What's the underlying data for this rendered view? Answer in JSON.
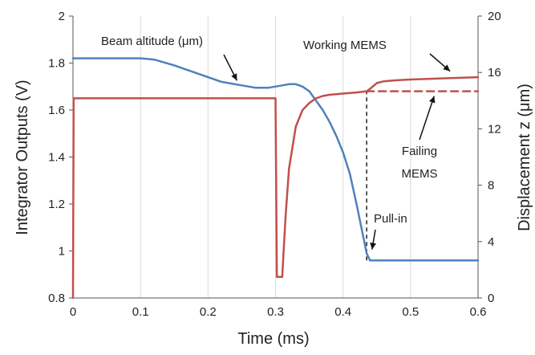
{
  "chart_data": {
    "type": "line",
    "xlabel": "Time (ms)",
    "ylabel_left": "Integrator Outputs (V)",
    "ylabel_right": "Displacement z (μm)",
    "xlim": [
      0,
      0.6
    ],
    "ylim_left": [
      0.8,
      2.0
    ],
    "ylim_right": [
      0,
      20
    ],
    "x_ticks": [
      "0",
      "0.1",
      "0.2",
      "0.3",
      "0.4",
      "0.5",
      "0.6"
    ],
    "y_left_ticks": [
      "0.8",
      "1",
      "1.2",
      "1.4",
      "1.6",
      "1.8",
      "2"
    ],
    "y_right_ticks": [
      "0",
      "4",
      "8",
      "12",
      "16",
      "20"
    ],
    "grid": "vertical",
    "series": [
      {
        "name": "Beam altitude (μm)",
        "color": "#4f81bd",
        "axis": "left",
        "style": "solid",
        "x": [
          0,
          0.1,
          0.12,
          0.15,
          0.18,
          0.2,
          0.22,
          0.25,
          0.27,
          0.29,
          0.31,
          0.32,
          0.33,
          0.34,
          0.35,
          0.36,
          0.37,
          0.38,
          0.39,
          0.4,
          0.41,
          0.42,
          0.43,
          0.435,
          0.44,
          0.6
        ],
        "y": [
          1.82,
          1.82,
          1.815,
          1.79,
          1.76,
          1.74,
          1.72,
          1.705,
          1.695,
          1.695,
          1.705,
          1.71,
          1.71,
          1.7,
          1.68,
          1.64,
          1.6,
          1.55,
          1.49,
          1.42,
          1.33,
          1.2,
          1.06,
          0.99,
          0.96,
          0.96
        ]
      },
      {
        "name": "Working MEMS",
        "color": "#c0504d",
        "axis": "left",
        "style": "solid",
        "x": [
          0,
          0.001,
          0.299,
          0.3,
          0.302,
          0.308,
          0.31,
          0.312,
          0.315,
          0.32,
          0.33,
          0.34,
          0.35,
          0.36,
          0.37,
          0.38,
          0.4,
          0.42,
          0.435,
          0.44,
          0.45,
          0.46,
          0.48,
          0.5,
          0.55,
          0.6
        ],
        "y": [
          0.8,
          1.65,
          1.65,
          1.65,
          0.89,
          0.89,
          0.89,
          1.0,
          1.15,
          1.35,
          1.53,
          1.6,
          1.63,
          1.65,
          1.66,
          1.665,
          1.67,
          1.675,
          1.68,
          1.69,
          1.715,
          1.722,
          1.727,
          1.73,
          1.735,
          1.74
        ]
      },
      {
        "name": "Failing MEMS",
        "color": "#c0504d",
        "axis": "left",
        "style": "dashed",
        "x": [
          0.435,
          0.5,
          0.6
        ],
        "y": [
          1.68,
          1.68,
          1.68
        ]
      }
    ],
    "pull_in_marker": {
      "x": 0.435,
      "y_from": 0.96,
      "y_to": 1.68,
      "style": "dashed",
      "color": "#222222"
    },
    "annotations": [
      {
        "text": "Beam altitude (μm)",
        "target_x": 0.25,
        "target_y": 1.705
      },
      {
        "text": "Working MEMS",
        "target_x": 0.555,
        "target_y": 1.738
      },
      {
        "text": "Failing MEMS",
        "lines": [
          "Failing",
          "MEMS"
        ],
        "target_x": 0.535,
        "target_y": 1.68
      },
      {
        "text": "Pull-in",
        "target_x": 0.437,
        "target_y": 1.02
      }
    ]
  }
}
